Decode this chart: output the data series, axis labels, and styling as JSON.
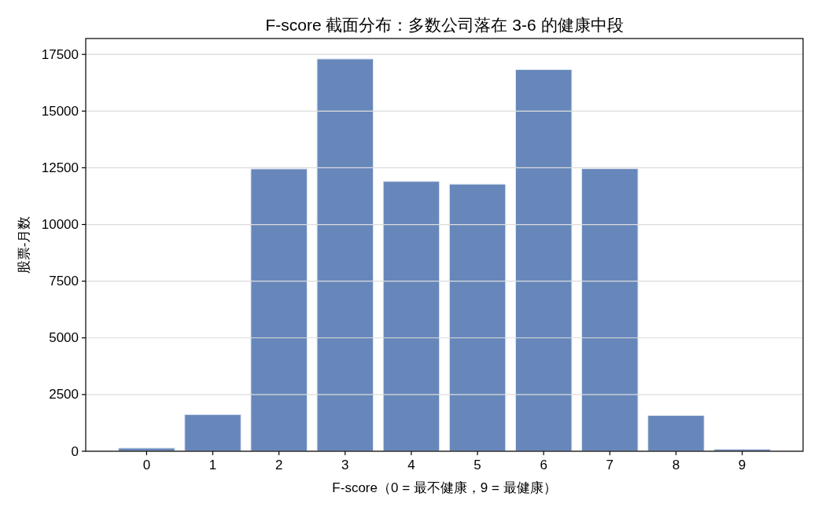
{
  "chart_data": {
    "type": "bar",
    "title": "F-score 截面分布：多数公司落在 3-6 的健康中段",
    "xlabel": "F-score（0 = 最不健康，9 = 最健康）",
    "ylabel": "股票-月数",
    "categories": [
      "0",
      "1",
      "2",
      "3",
      "4",
      "5",
      "6",
      "7",
      "8",
      "9"
    ],
    "values": [
      140,
      1620,
      12450,
      17300,
      11900,
      11780,
      16830,
      12460,
      1580,
      90
    ],
    "color": "#6787bb",
    "ylim": [
      0,
      18200
    ],
    "yticks": [
      0,
      2500,
      5000,
      7500,
      10000,
      12500,
      15000,
      17500
    ],
    "grid": "y"
  }
}
